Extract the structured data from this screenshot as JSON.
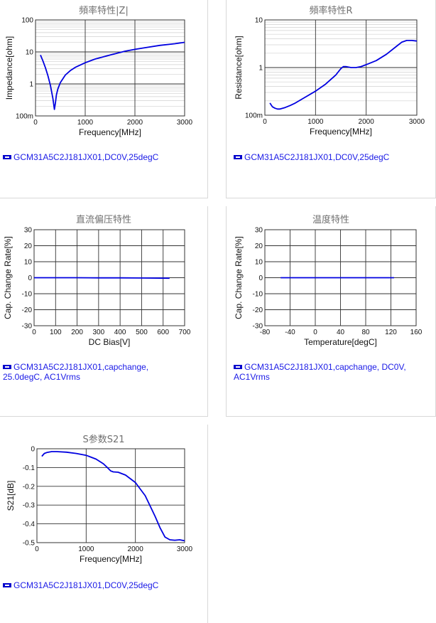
{
  "charts": [
    {
      "title": "頻率特性|Z|",
      "legend": "GCM31A5C2J181JX01,DC0V,25degC",
      "chart_data": {
        "type": "line",
        "title": "頻率特性|Z|",
        "xlabel": "Frequency[MHz]",
        "ylabel": "Impedance[ohm]",
        "xlim": [
          0,
          3000
        ],
        "ylim": [
          0.1,
          100
        ],
        "yscale": "log",
        "xticks": [
          0,
          1000,
          2000,
          3000
        ],
        "xtick_labels": [
          "0",
          "1000",
          "2000",
          "3000"
        ],
        "yticks": [
          0.1,
          1,
          10,
          100
        ],
        "ytick_labels": [
          "100m",
          "1",
          "10",
          "100"
        ],
        "grid": true,
        "series": [
          {
            "name": "GCM31A5C2J181JX01,DC0V,25degC",
            "x": [
              100,
              150,
              200,
              250,
              300,
              350,
              380,
              400,
              420,
              450,
              500,
              600,
              700,
              800,
              1000,
              1200,
              1500,
              1800,
              2000,
              2200,
              2500,
              2800,
              3000
            ],
            "y": [
              8,
              5.2,
              3.2,
              1.8,
              0.9,
              0.35,
              0.16,
              0.25,
              0.45,
              0.7,
              1.1,
              1.9,
              2.6,
              3.3,
              4.6,
              6.0,
              8.0,
              10.5,
              12.0,
              13.5,
              16.0,
              18.0,
              20.0
            ]
          }
        ]
      }
    },
    {
      "title": "頻率特性R",
      "legend": "GCM31A5C2J181JX01,DC0V,25degC",
      "chart_data": {
        "type": "line",
        "title": "頻率特性R",
        "xlabel": "Frequency[MHz]",
        "ylabel": "Resistance[ohm]",
        "xlim": [
          0,
          3000
        ],
        "ylim": [
          0.1,
          10
        ],
        "yscale": "log",
        "xticks": [
          0,
          1000,
          2000,
          3000
        ],
        "xtick_labels": [
          "0",
          "1000",
          "2000",
          "3000"
        ],
        "yticks": [
          0.1,
          1,
          10
        ],
        "ytick_labels": [
          "100m",
          "1",
          "10"
        ],
        "grid": true,
        "series": [
          {
            "name": "GCM31A5C2J181JX01,DC0V,25degC",
            "x": [
              100,
              150,
              200,
              250,
              300,
              400,
              500,
              600,
              800,
              1000,
              1200,
              1400,
              1500,
              1550,
              1600,
              1700,
              1800,
              1900,
              2000,
              2200,
              2400,
              2600,
              2700,
              2800,
              2900,
              3000
            ],
            "y": [
              0.18,
              0.15,
              0.14,
              0.135,
              0.135,
              0.145,
              0.16,
              0.18,
              0.24,
              0.32,
              0.45,
              0.7,
              0.95,
              1.05,
              1.05,
              1.0,
              1.0,
              1.05,
              1.15,
              1.4,
              1.9,
              2.8,
              3.4,
              3.7,
              3.7,
              3.6
            ]
          }
        ]
      }
    },
    {
      "title": "直流偏压特性",
      "legend": "GCM31A5C2J181JX01,capchange, 25.0degC, AC1Vrms",
      "chart_data": {
        "type": "line",
        "title": "直流偏压特性",
        "xlabel": "DC Bias[V]",
        "ylabel": "Cap. Change Rate[%]",
        "xlim": [
          0,
          700
        ],
        "ylim": [
          -30,
          30
        ],
        "yscale": "linear",
        "xticks": [
          0,
          100,
          200,
          300,
          400,
          500,
          600,
          700
        ],
        "xtick_labels": [
          "0",
          "100",
          "200",
          "300",
          "400",
          "500",
          "600",
          "700"
        ],
        "yticks": [
          -30,
          -20,
          -10,
          0,
          10,
          20,
          30
        ],
        "ytick_labels": [
          "-30",
          "-20",
          "-10",
          "0",
          "10",
          "20",
          "30"
        ],
        "grid": true,
        "series": [
          {
            "name": "GCM31A5C2J181JX01,capchange, 25.0degC, AC1Vrms",
            "x": [
              0,
              100,
              200,
              300,
              400,
              500,
              630
            ],
            "y": [
              0,
              0,
              0,
              -0.1,
              -0.1,
              -0.2,
              -0.3
            ]
          }
        ]
      }
    },
    {
      "title": "温度特性",
      "legend": "GCM31A5C2J181JX01,capchange, DC0V, AC1Vrms",
      "chart_data": {
        "type": "line",
        "title": "温度特性",
        "xlabel": "Temperature[degC]",
        "ylabel": "Cap. Change Rate[%]",
        "xlim": [
          -80,
          160
        ],
        "ylim": [
          -30,
          30
        ],
        "yscale": "linear",
        "xticks": [
          -80,
          -40,
          0,
          40,
          80,
          120,
          160
        ],
        "xtick_labels": [
          "-80",
          "-40",
          "0",
          "40",
          "80",
          "120",
          "160"
        ],
        "yticks": [
          -30,
          -20,
          -10,
          0,
          10,
          20,
          30
        ],
        "ytick_labels": [
          "-30",
          "-20",
          "-10",
          "0",
          "10",
          "20",
          "30"
        ],
        "grid": true,
        "series": [
          {
            "name": "GCM31A5C2J181JX01,capchange, DC0V, AC1Vrms",
            "x": [
              -55,
              -25,
              0,
              25,
              50,
              75,
              100,
              125
            ],
            "y": [
              0,
              0,
              0,
              0,
              0,
              0,
              0,
              0
            ]
          }
        ]
      }
    },
    {
      "title": "S参数S21",
      "legend": "GCM31A5C2J181JX01,DC0V,25degC",
      "chart_data": {
        "type": "line",
        "title": "S参数S21",
        "xlabel": "Frequency[MHz]",
        "ylabel": "S21[dB]",
        "xlim": [
          0,
          3000
        ],
        "ylim": [
          -0.5,
          0
        ],
        "yscale": "linear",
        "xticks": [
          0,
          1000,
          2000,
          3000
        ],
        "xtick_labels": [
          "0",
          "1000",
          "2000",
          "3000"
        ],
        "yticks": [
          -0.5,
          -0.4,
          -0.3,
          -0.2,
          -0.1,
          0
        ],
        "ytick_labels": [
          "-0.5",
          "-0.4",
          "-0.3",
          "-0.2",
          "-0.1",
          "0"
        ],
        "grid": true,
        "series": [
          {
            "name": "GCM31A5C2J181JX01,DC0V,25degC",
            "x": [
              100,
              150,
              200,
              300,
              400,
              600,
              800,
              1000,
              1200,
              1350,
              1450,
              1500,
              1550,
              1650,
              1800,
              2000,
              2200,
              2400,
              2500,
              2600,
              2700,
              2800,
              2900,
              3000
            ],
            "y": [
              -0.04,
              -0.025,
              -0.02,
              -0.015,
              -0.015,
              -0.018,
              -0.025,
              -0.035,
              -0.055,
              -0.08,
              -0.105,
              -0.118,
              -0.123,
              -0.125,
              -0.14,
              -0.18,
              -0.25,
              -0.36,
              -0.42,
              -0.47,
              -0.485,
              -0.487,
              -0.485,
              -0.49
            ]
          }
        ]
      }
    }
  ]
}
